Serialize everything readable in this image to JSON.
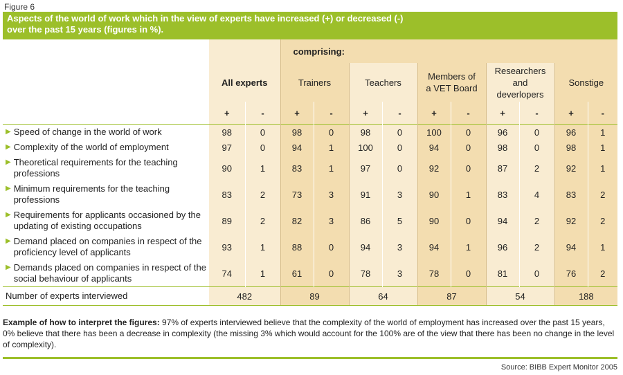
{
  "figure_label": "Figure 6",
  "title_line1": "Aspects of the world of work which in the view of experts have increased (+) or decreased (-)",
  "title_line2": "over the past 15 years (figures in %).",
  "comprising": "comprising:",
  "all_experts": "All experts",
  "groups": [
    "Trainers",
    "Teachers",
    "Members of a VET Board",
    "Researchers and deverlopers",
    "Sonstige"
  ],
  "plus": "+",
  "minus": "-",
  "rows": [
    {
      "label": "Speed of change in the world of work",
      "values": [
        "98",
        "0",
        "98",
        "0",
        "98",
        "0",
        "100",
        "0",
        "96",
        "0",
        "96",
        "1"
      ]
    },
    {
      "label": "Complexity of the world of employment",
      "values": [
        "97",
        "0",
        "94",
        "1",
        "100",
        "0",
        "94",
        "0",
        "98",
        "0",
        "98",
        "1"
      ]
    },
    {
      "label": "Theoretical requirements for the teaching professions",
      "values": [
        "90",
        "1",
        "83",
        "1",
        "97",
        "0",
        "92",
        "0",
        "87",
        "2",
        "92",
        "1"
      ]
    },
    {
      "label": "Minimum requirements for the teaching professions",
      "values": [
        "83",
        "2",
        "73",
        "3",
        "91",
        "3",
        "90",
        "1",
        "83",
        "4",
        "83",
        "2"
      ]
    },
    {
      "label": "Requirements for applicants occasioned by the updating of existing occupations",
      "values": [
        "89",
        "2",
        "82",
        "3",
        "86",
        "5",
        "90",
        "0",
        "94",
        "2",
        "92",
        "2"
      ]
    },
    {
      "label": "Demand placed on companies in respect of the proficiency level of applicants",
      "values": [
        "93",
        "1",
        "88",
        "0",
        "94",
        "3",
        "94",
        "1",
        "96",
        "2",
        "94",
        "1"
      ]
    },
    {
      "label": "Demands placed on companies in respect of the social behaviour of applicants",
      "values": [
        "74",
        "1",
        "61",
        "0",
        "78",
        "3",
        "78",
        "0",
        "81",
        "0",
        "76",
        "2"
      ]
    }
  ],
  "total_label": "Number of experts interviewed",
  "totals": [
    "482",
    "89",
    "64",
    "87",
    "54",
    "188"
  ],
  "note_bold": "Example of how to interpret the figures:",
  "note_text": " 97% of experts interviewed believe that the complexity of the world of employment has increased over the past 15 years, 0% believe that there has been a decrease in complexity (the missing 3% which would account for the 100% are of the view that there has been no change in the level of complexity).",
  "source": "Source: BIBB Expert Monitor 2005",
  "colors": {
    "accent": "#9cbf2a",
    "shade": "#f3ddb0",
    "light": "#f9ecd2"
  }
}
